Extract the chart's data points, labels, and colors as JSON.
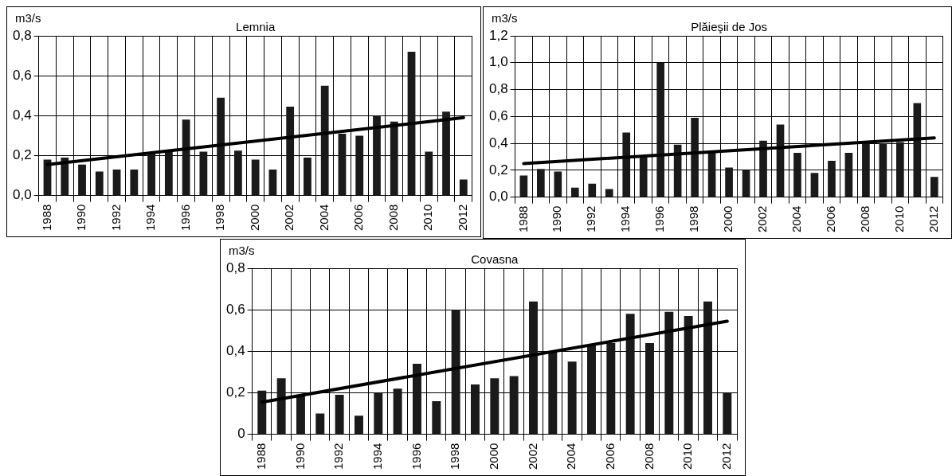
{
  "chart_data": [
    {
      "type": "bar",
      "title": "Lemnia",
      "ylabel": "m3/s",
      "categories": [
        "1988",
        null,
        "1990",
        null,
        "1992",
        null,
        "1994",
        null,
        "1996",
        null,
        "1998",
        null,
        "2000",
        null,
        "2002",
        null,
        "2004",
        null,
        "2006",
        null,
        "2008",
        null,
        "2010",
        null,
        "2012"
      ],
      "series": [
        {
          "color": "#1a1a1a",
          "values": [
            0.18,
            0.19,
            0.155,
            0.12,
            0.13,
            0.13,
            0.21,
            0.22,
            0.38,
            0.22,
            0.49,
            0.225,
            0.18,
            0.13,
            0.445,
            0.19,
            0.55,
            0.31,
            0.3,
            0.4,
            0.37,
            0.72,
            0.22,
            0.42,
            0.08
          ]
        },
        {
          "type": "line",
          "color": "#000000",
          "values": [
            0.155,
            null,
            null,
            null,
            null,
            null,
            null,
            null,
            null,
            null,
            null,
            null,
            null,
            null,
            null,
            null,
            null,
            null,
            null,
            null,
            null,
            null,
            null,
            null,
            0.39
          ]
        }
      ],
      "ylim": [
        0,
        0.8
      ],
      "yticks": [
        {
          "value": 0,
          "label": "0,0"
        },
        {
          "value": 0.2,
          "label": "0,2"
        },
        {
          "value": 0.4,
          "label": "0,4"
        },
        {
          "value": 0.6,
          "label": "0,6"
        },
        {
          "value": 0.8,
          "label": "0,8"
        }
      ],
      "grid": true,
      "legend": false
    },
    {
      "type": "bar",
      "title": "Plăieşii de Jos",
      "ylabel": "m3/s",
      "categories": [
        "1988",
        null,
        "1990",
        null,
        "1992",
        null,
        "1994",
        null,
        "1996",
        null,
        "1998",
        null,
        "2000",
        null,
        "2002",
        null,
        "2004",
        null,
        "2006",
        null,
        "2008",
        null,
        "2010",
        null,
        "2012"
      ],
      "series": [
        {
          "color": "#1a1a1a",
          "values": [
            0.16,
            0.21,
            0.19,
            0.07,
            0.1,
            0.06,
            0.48,
            0.3,
            1.0,
            0.39,
            0.59,
            0.33,
            0.22,
            0.2,
            0.42,
            0.54,
            0.33,
            0.18,
            0.27,
            0.33,
            0.4,
            0.4,
            0.41,
            0.7,
            0.15
          ]
        },
        {
          "type": "line",
          "color": "#000000",
          "values": [
            0.25,
            null,
            null,
            null,
            null,
            null,
            null,
            null,
            null,
            null,
            null,
            null,
            null,
            null,
            null,
            null,
            null,
            null,
            null,
            null,
            null,
            null,
            null,
            null,
            0.44
          ]
        }
      ],
      "ylim": [
        0,
        1.2
      ],
      "yticks": [
        {
          "value": 0,
          "label": "0,0"
        },
        {
          "value": 0.2,
          "label": "0,2"
        },
        {
          "value": 0.4,
          "label": "0,4"
        },
        {
          "value": 0.6,
          "label": "0,6"
        },
        {
          "value": 0.8,
          "label": "0,8"
        },
        {
          "value": 1.0,
          "label": "1,0"
        },
        {
          "value": 1.2,
          "label": "1,2"
        }
      ],
      "grid": true,
      "legend": false
    },
    {
      "type": "bar",
      "title": "Covasna",
      "ylabel": "m3/s",
      "categories": [
        "1988",
        null,
        "1990",
        null,
        "1992",
        null,
        "1994",
        null,
        "1996",
        null,
        "1998",
        null,
        "2000",
        null,
        "2002",
        null,
        "2004",
        null,
        "2006",
        null,
        "2008",
        null,
        "2010",
        null,
        "2012"
      ],
      "series": [
        {
          "color": "#1a1a1a",
          "values": [
            0.21,
            0.27,
            0.19,
            0.1,
            0.19,
            0.09,
            0.2,
            0.22,
            0.34,
            0.16,
            0.6,
            0.24,
            0.27,
            0.28,
            0.64,
            0.4,
            0.35,
            0.43,
            0.44,
            0.58,
            0.44,
            0.59,
            0.57,
            0.64,
            0.2
          ]
        },
        {
          "type": "line",
          "color": "#000000",
          "values": [
            0.155,
            null,
            null,
            null,
            null,
            null,
            null,
            null,
            null,
            null,
            null,
            null,
            null,
            null,
            null,
            null,
            null,
            null,
            null,
            null,
            null,
            null,
            null,
            null,
            0.545
          ]
        }
      ],
      "ylim": [
        0,
        0.8
      ],
      "yticks": [
        {
          "value": 0,
          "label": "0"
        },
        {
          "value": 0.2,
          "label": "0,2"
        },
        {
          "value": 0.4,
          "label": "0,4"
        },
        {
          "value": 0.6,
          "label": "0,6"
        },
        {
          "value": 0.8,
          "label": "0,8"
        }
      ],
      "grid": true,
      "legend": false
    }
  ]
}
